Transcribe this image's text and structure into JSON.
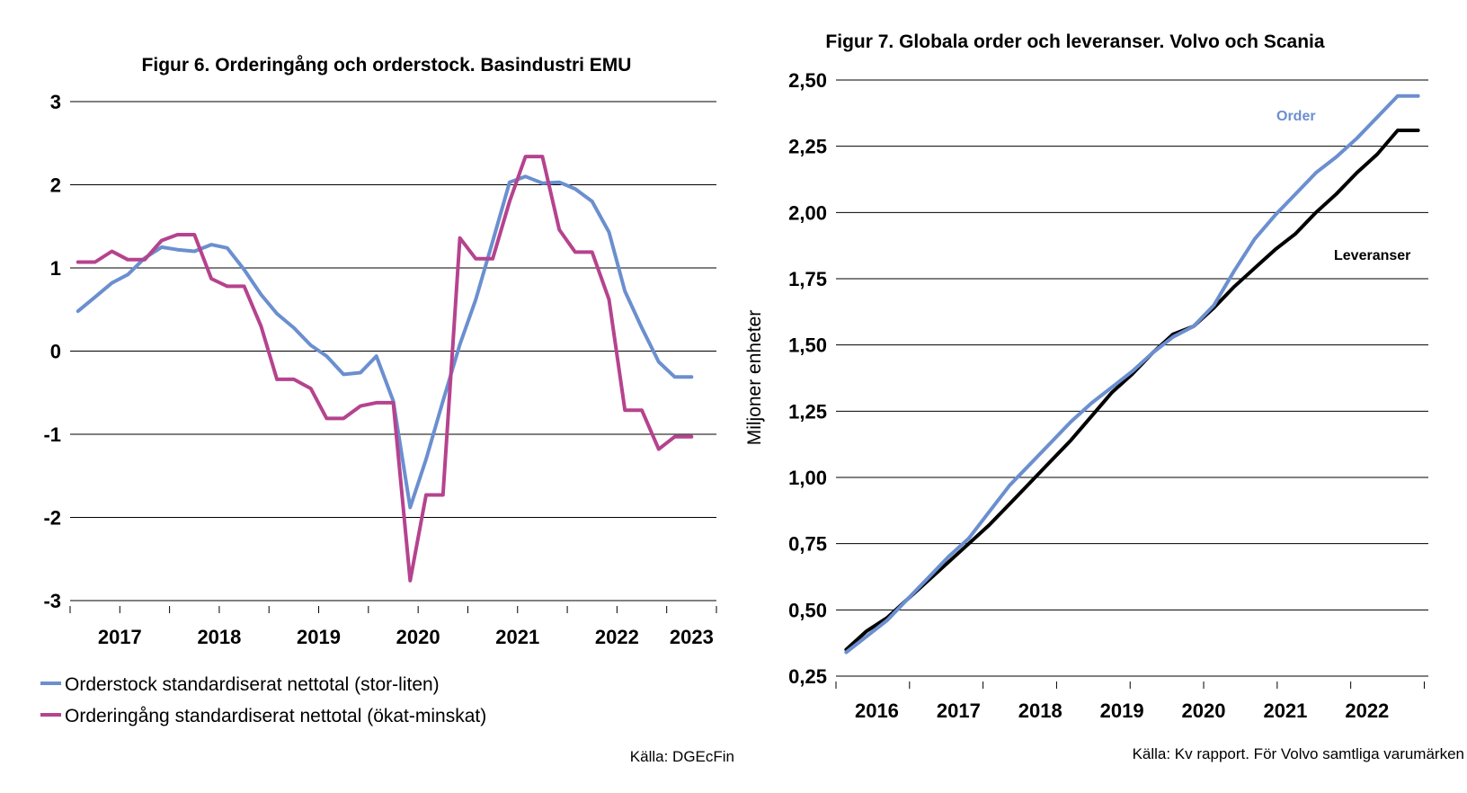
{
  "charts": {
    "left": {
      "title": "Figur 6. Orderingång och orderstock. Basindustri EMU",
      "source": "Källa: DGEcFin",
      "colors": {
        "orderstock": "#6b8fcf",
        "orderingang": "#b5438e",
        "grid": "#000000"
      }
    },
    "right": {
      "title": "Figur 7. Globala order och leveranser. Volvo och Scania",
      "ylabel": "Miljoner enheter",
      "source": "Källa: Kv rapport. För Volvo samtliga varumärken",
      "colors": {
        "order": "#6b8fcf",
        "leveranser": "#000000"
      }
    }
  },
  "chart_data": [
    {
      "type": "line",
      "title": "Figur 6. Orderingång och orderstock. Basindustri EMU",
      "xlabel": "",
      "ylabel": "",
      "xlim": [
        2016.75,
        2023.25
      ],
      "ylim": [
        -3,
        3
      ],
      "yticks": [
        3,
        2,
        1,
        0,
        -1,
        -2,
        -3
      ],
      "ytick_labels": [
        "3",
        "2",
        "1",
        "0",
        "-1",
        "-2",
        "-3"
      ],
      "xtick_labels": [
        {
          "label": "2017",
          "x": 2017.25
        },
        {
          "label": "2018",
          "x": 2018.25
        },
        {
          "label": "2019",
          "x": 2019.25
        },
        {
          "label": "2020",
          "x": 2020.25
        },
        {
          "label": "2021",
          "x": 2021.25
        },
        {
          "label": "2022",
          "x": 2022.25
        },
        {
          "label": "2023",
          "x": 2023.0
        }
      ],
      "grid": true,
      "legend": "bottom",
      "series": [
        {
          "name": "Orderstock standardiserat nettotal (stor-liten)",
          "x": [
            2016.83,
            2017.0,
            2017.17,
            2017.33,
            2017.5,
            2017.67,
            2017.83,
            2018.0,
            2018.17,
            2018.33,
            2018.5,
            2018.67,
            2018.83,
            2019.0,
            2019.17,
            2019.33,
            2019.5,
            2019.67,
            2019.83,
            2020.0,
            2020.17,
            2020.33,
            2020.5,
            2020.67,
            2020.83,
            2021.0,
            2021.17,
            2021.33,
            2021.5,
            2021.67,
            2021.83,
            2022.0,
            2022.17,
            2022.33,
            2022.5,
            2022.67,
            2022.83,
            2023.0
          ],
          "values": [
            0.48,
            0.65,
            0.82,
            0.92,
            1.12,
            1.25,
            1.22,
            1.2,
            1.28,
            1.24,
            0.98,
            0.68,
            0.45,
            0.28,
            0.07,
            -0.06,
            -0.28,
            -0.26,
            -0.06,
            -0.6,
            -1.88,
            -1.3,
            -0.6,
            0.08,
            0.62,
            1.32,
            2.03,
            2.1,
            2.02,
            2.03,
            1.95,
            1.8,
            1.43,
            0.72,
            0.28,
            -0.13,
            -0.31,
            -0.31
          ]
        },
        {
          "name": "Orderingång standardiserat nettotal (ökat-minskat)",
          "x": [
            2016.83,
            2017.0,
            2017.17,
            2017.33,
            2017.5,
            2017.67,
            2017.83,
            2018.0,
            2018.17,
            2018.33,
            2018.5,
            2018.67,
            2018.83,
            2019.0,
            2019.17,
            2019.33,
            2019.5,
            2019.67,
            2019.83,
            2020.0,
            2020.17,
            2020.33,
            2020.5,
            2020.67,
            2020.83,
            2021.0,
            2021.17,
            2021.33,
            2021.5,
            2021.67,
            2021.83,
            2022.0,
            2022.17,
            2022.33,
            2022.5,
            2022.67,
            2022.83,
            2023.0
          ],
          "values": [
            1.07,
            1.07,
            1.2,
            1.1,
            1.1,
            1.33,
            1.4,
            1.4,
            0.87,
            0.78,
            0.78,
            0.3,
            -0.34,
            -0.34,
            -0.45,
            -0.81,
            -0.81,
            -0.66,
            -0.62,
            -0.62,
            -2.76,
            -1.73,
            -1.73,
            1.36,
            1.11,
            1.11,
            1.8,
            2.34,
            2.34,
            1.46,
            1.19,
            1.19,
            0.62,
            -0.71,
            -0.71,
            -1.18,
            -1.03,
            -1.03
          ]
        }
      ]
    },
    {
      "type": "line",
      "title": "Figur 7. Globala order och leveranser. Volvo och Scania",
      "xlabel": "",
      "ylabel": "Miljoner enheter",
      "xlim": [
        2015.5,
        2022.75
      ],
      "ylim": [
        0.25,
        2.5
      ],
      "yticks": [
        2.5,
        2.25,
        2.0,
        1.75,
        1.5,
        1.25,
        1.0,
        0.75,
        0.5,
        0.25
      ],
      "ytick_labels": [
        "2,50",
        "2,25",
        "2,00",
        "1,75",
        "1,50",
        "1,25",
        "1,00",
        "0,75",
        "0,50",
        "0,25"
      ],
      "xtick_labels": [
        {
          "label": "2016",
          "x": 2016.0
        },
        {
          "label": "2017",
          "x": 2017.0
        },
        {
          "label": "2018",
          "x": 2018.0
        },
        {
          "label": "2019",
          "x": 2019.0
        },
        {
          "label": "2020",
          "x": 2020.0
        },
        {
          "label": "2021",
          "x": 2021.0
        },
        {
          "label": "2022",
          "x": 2022.0
        }
      ],
      "grid": true,
      "legend": "inline",
      "series": [
        {
          "name": "Order",
          "x": [
            2015.625,
            2015.875,
            2016.125,
            2016.375,
            2016.625,
            2016.875,
            2017.125,
            2017.375,
            2017.625,
            2017.875,
            2018.125,
            2018.375,
            2018.625,
            2018.875,
            2019.125,
            2019.375,
            2019.625,
            2019.875,
            2020.125,
            2020.375,
            2020.625,
            2020.875,
            2021.125,
            2021.375,
            2021.625,
            2021.875,
            2022.125,
            2022.375,
            2022.625
          ],
          "values": [
            0.34,
            0.4,
            0.46,
            0.54,
            0.62,
            0.7,
            0.77,
            0.87,
            0.97,
            1.05,
            1.13,
            1.21,
            1.28,
            1.34,
            1.4,
            1.47,
            1.53,
            1.57,
            1.65,
            1.78,
            1.9,
            1.99,
            2.07,
            2.15,
            2.21,
            2.28,
            2.36,
            2.44,
            2.44
          ]
        },
        {
          "name": "Leveranser",
          "x": [
            2015.625,
            2015.875,
            2016.125,
            2016.375,
            2016.625,
            2016.875,
            2017.125,
            2017.375,
            2017.625,
            2017.875,
            2018.125,
            2018.375,
            2018.625,
            2018.875,
            2019.125,
            2019.375,
            2019.625,
            2019.875,
            2020.125,
            2020.375,
            2020.625,
            2020.875,
            2021.125,
            2021.375,
            2021.625,
            2021.875,
            2022.125,
            2022.375,
            2022.625
          ],
          "values": [
            0.35,
            0.42,
            0.47,
            0.54,
            0.61,
            0.68,
            0.75,
            0.82,
            0.9,
            0.98,
            1.06,
            1.14,
            1.23,
            1.32,
            1.39,
            1.47,
            1.54,
            1.57,
            1.64,
            1.72,
            1.79,
            1.86,
            1.92,
            2.0,
            2.07,
            2.15,
            2.22,
            2.31,
            2.31
          ]
        }
      ]
    }
  ]
}
